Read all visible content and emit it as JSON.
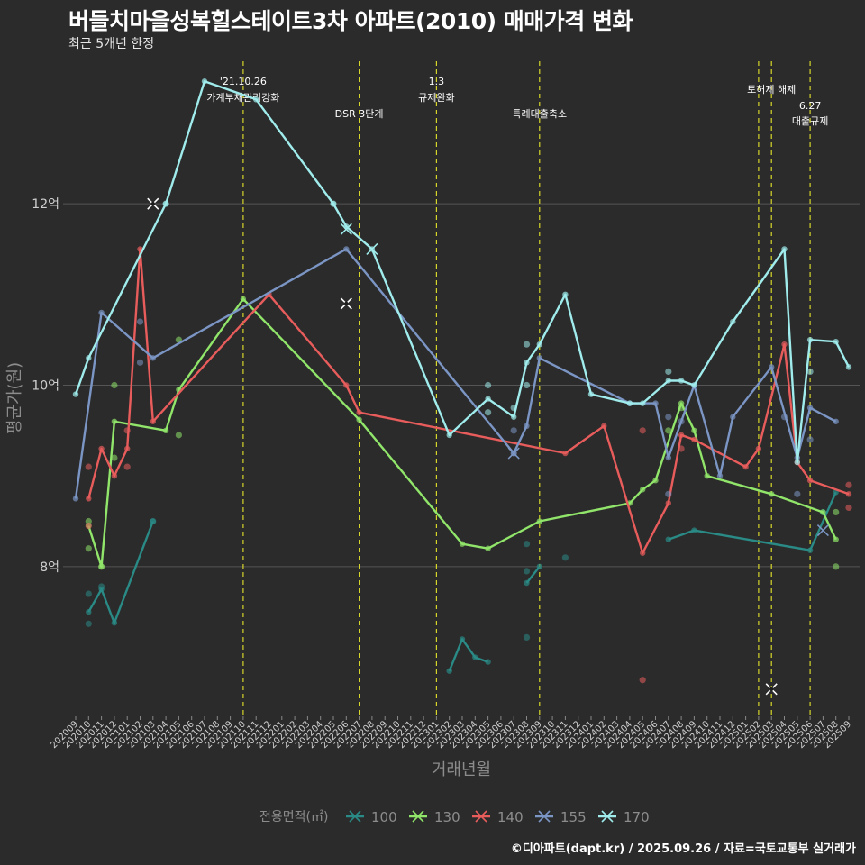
{
  "title": "버들치마을성복힐스테이트3차 아파트(2010) 매매가격 변화",
  "subtitle": "최근 5개년 한정",
  "caption": "©디아파트(dapt.kr) / 2025.09.26 / 자료=국토교통부 실거래가",
  "chart_data": {
    "type": "line",
    "xlabel": "거래년월",
    "ylabel": "평균가(원)",
    "y_unit": "억",
    "ylim": [
      6.35,
      13.65
    ],
    "yticks": [
      {
        "v": 8,
        "label": "8억"
      },
      {
        "v": 10,
        "label": "10억"
      },
      {
        "v": 12,
        "label": "12억"
      }
    ],
    "categories": [
      "202009",
      "202010",
      "202011",
      "202012",
      "202101",
      "202102",
      "202103",
      "202104",
      "202105",
      "202106",
      "202107",
      "202108",
      "202109",
      "202110",
      "202111",
      "202112",
      "202201",
      "202202",
      "202203",
      "202204",
      "202205",
      "202206",
      "202207",
      "202208",
      "202209",
      "202210",
      "202211",
      "202212",
      "202301",
      "202302",
      "202303",
      "202304",
      "202305",
      "202306",
      "202307",
      "202308",
      "202309",
      "202310",
      "202311",
      "202312",
      "202401",
      "202402",
      "202403",
      "202404",
      "202405",
      "202406",
      "202407",
      "202408",
      "202409",
      "202410",
      "202411",
      "202412",
      "202501",
      "202502",
      "202503",
      "202504",
      "202505",
      "202506",
      "202507",
      "202508",
      "202509"
    ],
    "events": [
      {
        "x": "202110",
        "label1": "'21.10.26",
        "label2": "가계부채관리강화",
        "tier": "high"
      },
      {
        "x": "202207",
        "label1": "DSR 3단계",
        "label2": "",
        "tier": "low"
      },
      {
        "x": "202301",
        "label1": "1.3",
        "label2": "규제완화",
        "tier": "high"
      },
      {
        "x": "202309",
        "label1": "특례대출축소",
        "label2": "",
        "tier": "low"
      },
      {
        "x": "202502",
        "label1": "",
        "label2": "",
        "tier": "none"
      },
      {
        "x": "202503",
        "label1": "토허제 해제",
        "label2": "",
        "tier": "top"
      },
      {
        "x": "202506",
        "label1": "6.27",
        "label2": "대출규제",
        "tier": "mid"
      }
    ],
    "legend_title": "전용면적(㎡)",
    "series": [
      {
        "name": "100",
        "color": "#2a8a86",
        "line": [
          [
            "202010",
            7.5
          ],
          [
            "202011",
            7.75
          ],
          [
            "202012",
            7.38
          ],
          [
            "202103",
            8.5
          ],
          null,
          [
            "202302",
            6.85
          ],
          [
            "202303",
            7.2
          ],
          [
            "202304",
            7.0
          ],
          [
            "202305",
            6.95
          ],
          null,
          [
            "202308",
            7.82
          ],
          [
            "202309",
            8.0
          ],
          null,
          [
            "202407",
            8.3
          ],
          [
            "202409",
            8.4
          ],
          [
            "202506",
            8.18
          ],
          [
            "202508",
            8.82
          ]
        ],
        "points": [
          [
            "202010",
            7.7
          ],
          [
            "202010",
            7.37
          ],
          [
            "202011",
            7.78
          ],
          [
            "202103",
            8.5
          ],
          [
            "202308",
            8.25
          ],
          [
            "202308",
            7.95
          ],
          [
            "202308",
            7.22
          ],
          [
            "202311",
            8.1
          ],
          [
            "202507",
            8.6
          ]
        ]
      },
      {
        "name": "130",
        "color": "#90e56a",
        "line": [
          [
            "202010",
            8.45
          ],
          [
            "202011",
            8.0
          ],
          [
            "202012",
            9.6
          ],
          [
            "202104",
            9.5
          ],
          [
            "202105",
            9.95
          ],
          [
            "202110",
            10.95
          ],
          [
            "202207",
            9.62
          ],
          [
            "202303",
            8.25
          ],
          [
            "202305",
            8.2
          ],
          [
            "202309",
            8.5
          ],
          [
            "202404",
            8.7
          ],
          [
            "202405",
            8.85
          ],
          [
            "202406",
            8.95
          ],
          [
            "202408",
            9.8
          ],
          [
            "202409",
            9.5
          ],
          [
            "202410",
            9.0
          ],
          [
            "202503",
            8.8
          ],
          [
            "202507",
            8.6
          ],
          [
            "202508",
            8.3
          ]
        ],
        "points": [
          [
            "202010",
            8.2
          ],
          [
            "202010",
            8.5
          ],
          [
            "202011",
            8.0
          ],
          [
            "202012",
            10.0
          ],
          [
            "202012",
            9.2
          ],
          [
            "202105",
            10.5
          ],
          [
            "202105",
            9.45
          ],
          [
            "202408",
            9.75
          ],
          [
            "202407",
            9.5
          ],
          [
            "202508",
            8.6
          ],
          [
            "202508",
            8.0
          ]
        ]
      },
      {
        "name": "140",
        "color": "#e85c5c",
        "line": [
          [
            "202010",
            8.75
          ],
          [
            "202011",
            9.3
          ],
          [
            "202012",
            9.0
          ],
          [
            "202101",
            9.3
          ],
          [
            "202102",
            11.5
          ],
          [
            "202103",
            9.6
          ],
          [
            "202112",
            11.0
          ],
          [
            "202206",
            10.0
          ],
          [
            "202207",
            9.7
          ],
          [
            "202311",
            9.25
          ],
          [
            "202402",
            9.55
          ],
          [
            "202405",
            8.15
          ],
          [
            "202407",
            8.7
          ],
          [
            "202408",
            9.45
          ],
          [
            "202409",
            9.4
          ],
          [
            "202501",
            9.1
          ],
          [
            "202502",
            9.3
          ],
          [
            "202504",
            10.45
          ],
          [
            "202505",
            9.15
          ],
          [
            "202506",
            8.95
          ],
          [
            "202509",
            8.8
          ]
        ],
        "points": [
          [
            "202010",
            9.1
          ],
          [
            "202010",
            8.45
          ],
          [
            "202101",
            9.1
          ],
          [
            "202101",
            9.5
          ],
          [
            "202405",
            9.5
          ],
          [
            "202405",
            6.75
          ],
          [
            "202408",
            9.3
          ],
          [
            "202509",
            8.9
          ],
          [
            "202509",
            8.65
          ]
        ]
      },
      {
        "name": "155",
        "color": "#7b95c4",
        "line": [
          [
            "202009",
            8.75
          ],
          [
            "202011",
            10.8
          ],
          [
            "202103",
            10.3
          ],
          [
            "202206",
            11.5
          ],
          [
            "202307",
            9.25
          ],
          [
            "202308",
            9.55
          ],
          [
            "202309",
            10.3
          ],
          [
            "202404",
            9.8
          ],
          [
            "202406",
            9.8
          ],
          [
            "202407",
            9.2
          ],
          [
            "202409",
            10.0
          ],
          [
            "202411",
            9.0
          ],
          [
            "202412",
            9.65
          ],
          [
            "202503",
            10.2
          ],
          [
            "202505",
            9.2
          ],
          [
            "202506",
            9.75
          ],
          [
            "202508",
            9.6
          ]
        ],
        "points": [
          [
            "202102",
            10.7
          ],
          [
            "202102",
            10.25
          ],
          [
            "202307",
            9.5
          ],
          [
            "202307",
            9.25
          ],
          [
            "202407",
            9.65
          ],
          [
            "202407",
            8.8
          ],
          [
            "202408",
            9.6
          ],
          [
            "202504",
            9.65
          ],
          [
            "202505",
            8.8
          ],
          [
            "202506",
            9.4
          ]
        ]
      },
      {
        "name": "170",
        "color": "#a0ecec",
        "line": [
          [
            "202009",
            9.9
          ],
          [
            "202010",
            10.3
          ],
          [
            "202104",
            12.0
          ],
          [
            "202107",
            13.35
          ],
          [
            "202111",
            13.15
          ],
          [
            "202205",
            12.0
          ],
          [
            "202206",
            11.75
          ],
          [
            "202208",
            11.5
          ],
          [
            "202302",
            9.45
          ],
          [
            "202305",
            9.85
          ],
          [
            "202307",
            9.65
          ],
          [
            "202308",
            10.25
          ],
          [
            "202309",
            10.45
          ],
          [
            "202311",
            11.0
          ],
          [
            "202401",
            9.9
          ],
          [
            "202404",
            9.8
          ],
          [
            "202405",
            9.8
          ],
          [
            "202407",
            10.05
          ],
          [
            "202408",
            10.05
          ],
          [
            "202409",
            10.0
          ],
          [
            "202412",
            10.7
          ],
          [
            "202504",
            11.5
          ],
          [
            "202505",
            9.15
          ],
          [
            "202506",
            10.5
          ],
          [
            "202508",
            10.48
          ],
          [
            "202509",
            10.2
          ]
        ],
        "points": [
          [
            "202205",
            12.0
          ],
          [
            "202104",
            12.0
          ],
          [
            "202305",
            10.0
          ],
          [
            "202305",
            9.7
          ],
          [
            "202307",
            9.75
          ],
          [
            "202308",
            10.45
          ],
          [
            "202308",
            10.0
          ],
          [
            "202407",
            10.15
          ],
          [
            "202506",
            10.15
          ]
        ]
      }
    ],
    "markers": [
      {
        "x": "202103",
        "y": 12.0,
        "color": "#1f1f1f"
      },
      {
        "x": "202206",
        "y": 11.72,
        "color": "#a0ecec"
      },
      {
        "x": "202206",
        "y": 10.9,
        "color": "#1f1f1f"
      },
      {
        "x": "202307",
        "y": 9.25,
        "color": "#7b95c4"
      },
      {
        "x": "202503",
        "y": 6.65,
        "color": "#1f1f1f"
      },
      {
        "x": "202507",
        "y": 8.4,
        "color": "#7b95c4"
      },
      {
        "x": "202208",
        "y": 11.5,
        "color": "#a0ecec"
      }
    ]
  }
}
